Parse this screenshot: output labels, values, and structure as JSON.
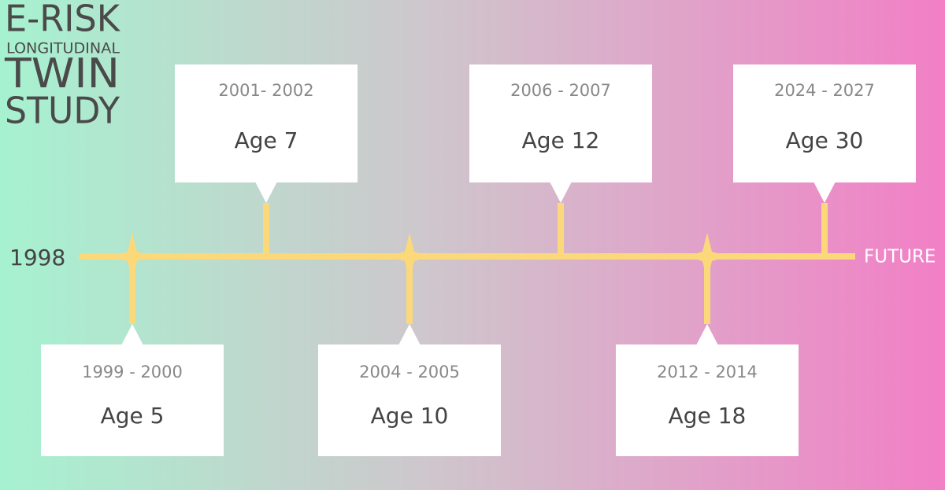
{
  "title": {
    "line1": "E-RISK",
    "line2": "LONGITUDINAL",
    "line3": "TWIN",
    "line4": "STUDY"
  },
  "timeline": {
    "start": "1998",
    "end": "FUTURE"
  },
  "events": [
    {
      "years": "1999 - 2000",
      "age": "Age 5"
    },
    {
      "years": "2001- 2002",
      "age": "Age 7"
    },
    {
      "years": "2004 - 2005",
      "age": "Age 10"
    },
    {
      "years": "2006 - 2007",
      "age": "Age 12"
    },
    {
      "years": "2012 - 2014",
      "age": "Age 18"
    },
    {
      "years": "2024 - 2027",
      "age": "Age 30"
    }
  ]
}
